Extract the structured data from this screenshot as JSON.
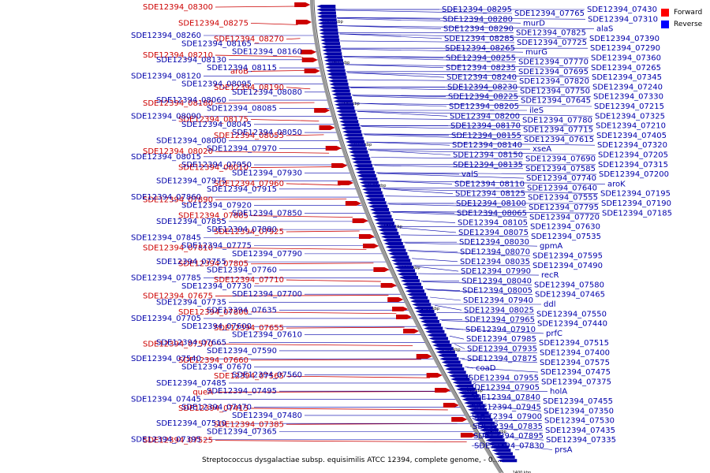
{
  "caption": "Streptococcus dysgalactiae subsp. equisimilis ATCC 12394, complete genome, - 0....",
  "legend": [
    {
      "label": "Forward",
      "color": "#ff0000"
    },
    {
      "label": "Reverse",
      "color": "#0000ff"
    }
  ],
  "colors": {
    "forward": "#cc0000",
    "reverse": "#0000aa",
    "axis": "#8a8a8a"
  },
  "ticks": [
    "1620 kbp",
    "1600 kbp",
    "1580 kbp",
    "1560 kbp",
    "1540 kbp",
    "1520 kbp",
    "1500 kbp",
    "1480 kbp",
    "1460 kbp",
    "1440 kbp",
    "1420 kbp",
    "1400 kbp"
  ],
  "forward_labels": [
    "SDE12394_08300",
    "SDE12394_08275",
    "SDE12394_08270",
    "SDE12394_08210",
    "aroB",
    "SDE12394_08190",
    "SDE12394_08180",
    "SDE12394_08175",
    "SDE12394_08055",
    "SDE12394_08020",
    "SDE12394_08010",
    "SDE12394_07960",
    "SDE12394_07890",
    "SDE12394_07885",
    "SDE12394_07925",
    "SDE12394_07810",
    "SDE12394_07805",
    "SDE12394_07710",
    "SDE12394_07675",
    "SDE12394_07800",
    "SDE12394_07655",
    "SDE12394_07570",
    "SDE12394_07660",
    "SDE12394_07565",
    "queA",
    "SDE12394_07415",
    "SDE12394_07385",
    "SDE12394_07525"
  ],
  "left_reverse_labels": [
    "SDE12394_08260",
    "SDE12394_08165",
    "SDE12394_08160",
    "SDE12394_08130",
    "SDE12394_08115",
    "SDE12394_08120",
    "SDE12394_08095",
    "SDE12394_08080",
    "SDE12394_08060",
    "SDE12394_08085",
    "SDE12394_08090",
    "SDE12394_08045",
    "SDE12394_08050",
    "SDE12394_08000",
    "SDE12394_07970",
    "SDE12394_08015",
    "SDE12394_07950",
    "SDE12394_07930",
    "SDE12394_07975",
    "SDE12394_07915",
    "SDE12394_07860",
    "SDE12394_07920",
    "SDE12394_07850",
    "SDE12394_07855",
    "SDE12394_07880",
    "SDE12394_07845",
    "SDE12394_07775",
    "SDE12394_07790",
    "SDE12394_07755",
    "SDE12394_07760",
    "SDE12394_07785",
    "SDE12394_07730",
    "SDE12394_07700",
    "SDE12394_07735",
    "SDE12394_07635",
    "SDE12394_07705",
    "SDE12394_07600",
    "SDE12394_07610",
    "SDE12394_07665",
    "SDE12394_07590",
    "SDE12394_07540",
    "SDE12394_07670",
    "SDE12394_07560",
    "SDE12394_07485",
    "SDE12394_07495",
    "SDE12394_07445",
    "SDE12394_07470",
    "SDE12394_07480",
    "SDE12394_07510",
    "SDE12394_07365",
    "SDE12394_07395"
  ],
  "right_labels": [
    "SDE12394_08295",
    "SDE12394_08280",
    "SDE12394_08290",
    "SDE12394_08285",
    "SDE12394_08265",
    "SDE12394_08255",
    "SDE12394_08235",
    "SDE12394_08240",
    "SDE12394_08230",
    "SDE12394_08225",
    "SDE12394_08205",
    "SDE12394_08200",
    "SDE12394_08170",
    "SDE12394_08155",
    "SDE12394_08140",
    "SDE12394_08150",
    "SDE12394_08135",
    "valS",
    "SDE12394_08110",
    "SDE12394_08125",
    "SDE12394_08100",
    "SDE12394_08065",
    "SDE12394_08105",
    "SDE12394_08075",
    "SDE12394_08030",
    "SDE12394_08070",
    "SDE12394_08035",
    "SDE12394_07990",
    "SDE12394_08040",
    "SDE12394_08005",
    "SDE12394_07940",
    "SDE12394_08025",
    "SDE12394_07965",
    "SDE12394_07910",
    "SDE12394_07985",
    "SDE12394_07935",
    "SDE12394_07875",
    "coaD",
    "SDE12394_07955",
    "SDE12394_07905",
    "SDE12394_07840",
    "SDE12394_07945",
    "SDE12394_07900",
    "SDE12394_07835",
    "SDE12394_07895",
    "SDE12394_07830",
    "SDE12394_07765",
    "murD",
    "SDE12394_07825",
    "SDE12394_07725",
    "murG",
    "SDE12394_07770",
    "SDE12394_07695",
    "SDE12394_07820",
    "SDE12394_07750",
    "SDE12394_07645",
    "ileS",
    "SDE12394_07780",
    "SDE12394_07715",
    "SDE12394_07615",
    "xseA",
    "SDE12394_07690",
    "SDE12394_07585",
    "SDE12394_07740",
    "SDE12394_07640",
    "SDE12394_07555",
    "SDE12394_07795",
    "SDE12394_07720",
    "SDE12394_07630",
    "SDE12394_07535",
    "gpmA",
    "SDE12394_07595",
    "SDE12394_07490",
    "recR",
    "SDE12394_07580",
    "SDE12394_07465",
    "ddl",
    "SDE12394_07550",
    "SDE12394_07440",
    "prfC",
    "SDE12394_07515",
    "SDE12394_07400",
    "SDE12394_07575",
    "SDE12394_07475",
    "SDE12394_07375",
    "holA",
    "SDE12394_07455",
    "SDE12394_07350",
    "SDE12394_07530",
    "SDE12394_07435",
    "SDE12394_07335",
    "prsA",
    "SDE12394_07430",
    "SDE12394_07310",
    "alaS",
    "SDE12394_07390",
    "SDE12394_07290",
    "SDE12394_07360",
    "SDE12394_07265",
    "SDE12394_07345",
    "SDE12394_07240",
    "SDE12394_07330",
    "SDE12394_07215",
    "SDE12394_07325",
    "SDE12394_07210",
    "SDE12394_07405",
    "SDE12394_07320",
    "SDE12394_07205",
    "SDE12394_07315",
    "SDE12394_07200",
    "aroK",
    "SDE12394_07195",
    "SDE12394_07190",
    "SDE12394_07185"
  ]
}
